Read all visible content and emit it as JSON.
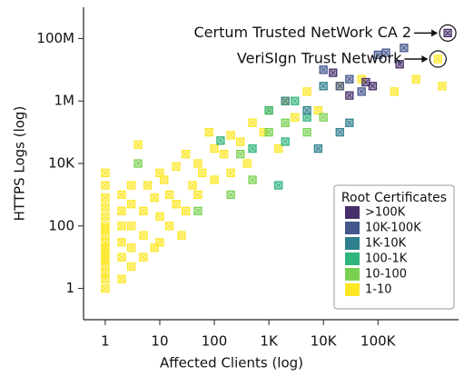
{
  "chart_data": {
    "type": "scatter",
    "xlabel": "Affected Clients (log)",
    "ylabel": "HTTPS Logs (log)",
    "xscale": "log",
    "yscale": "log",
    "xlim": [
      0.4,
      3000000
    ],
    "ylim": [
      0.1,
      1000000000
    ],
    "xticks": [
      1,
      10,
      100,
      {
        "value": 1000,
        "label": "1K"
      },
      {
        "value": 10000,
        "label": "10K"
      },
      {
        "value": 100000,
        "label": "100K"
      }
    ],
    "yticks": [
      1,
      100,
      {
        "value": 10000,
        "label": "10K"
      },
      {
        "value": 1000000,
        "label": "1M"
      },
      {
        "value": 100000000,
        "label": "100M"
      }
    ],
    "legend_title": "Root Certificates",
    "legend_position": "lower right",
    "series": [
      {
        "name": "1-10",
        "color": "#fde725",
        "x": [
          1,
          1,
          1,
          1,
          1,
          1,
          1,
          1,
          1,
          1,
          1,
          1,
          1,
          1,
          1,
          1,
          1,
          2,
          2,
          2,
          2,
          2,
          2,
          3,
          3,
          3,
          3,
          3,
          4,
          5,
          5,
          5,
          6,
          8,
          8,
          10,
          10,
          10,
          12,
          15,
          15,
          20,
          20,
          25,
          30,
          30,
          40,
          50,
          50,
          60,
          80,
          100,
          100,
          150,
          200,
          200,
          300,
          400,
          500,
          800,
          1000,
          1500,
          2000,
          3000,
          5000,
          8000,
          20000,
          50000,
          200000,
          500000,
          1500000,
          1260000
        ],
        "values": [
          1,
          2,
          3,
          5,
          8,
          10,
          15,
          20,
          30,
          50,
          80,
          100,
          200,
          400,
          800,
          2000,
          5000,
          2,
          10,
          30,
          100,
          300,
          1000,
          5,
          20,
          100,
          500,
          2000,
          40000,
          10,
          50,
          300,
          2000,
          20,
          800,
          30,
          200,
          5000,
          3000,
          100,
          1000,
          500,
          8000,
          50,
          300,
          20000,
          2000,
          1000,
          10000,
          5000,
          100000,
          3000,
          30000,
          20000,
          5000,
          80000,
          50000,
          10000,
          200000,
          100000,
          500000,
          30000,
          1000000,
          300000,
          2000000,
          500000,
          3000000,
          5000000,
          2000000,
          5000000,
          3000000,
          22000000
        ]
      },
      {
        "name": "10-100",
        "color": "#7ad151",
        "x": [
          4,
          50,
          200,
          300,
          500,
          1000,
          2000,
          5000,
          10000
        ],
        "values": [
          10000,
          300,
          1000,
          20000,
          3000,
          100000,
          200000,
          100000,
          300000
        ]
      },
      {
        "name": "100-1K",
        "color": "#2fb47c",
        "x": [
          130,
          500,
          1000,
          3000,
          5000,
          1500,
          2000
        ],
        "values": [
          54000,
          30000,
          500000,
          1000000,
          300000,
          2000,
          50000
        ]
      },
      {
        "name": "1K-10K",
        "color": "#2f7f8e",
        "x": [
          2000,
          5000,
          10000,
          20000,
          30000,
          8000
        ],
        "values": [
          1000000,
          500000,
          3000000,
          100000,
          200000,
          30000
        ]
      },
      {
        "name": "10K-100K",
        "color": "#45588d",
        "x": [
          10000,
          30000,
          20000,
          50000,
          100000,
          140000,
          300000
        ],
        "values": [
          10000000,
          5000000,
          3000000,
          2000000,
          30000000,
          35000000,
          50000000
        ]
      },
      {
        "name": ">100K",
        "color": "#472f6b",
        "x": [
          15000,
          30000,
          60000,
          80000,
          250000,
          1900000
        ],
        "values": [
          8000000,
          1500000,
          4000000,
          3000000,
          15000000,
          150000000
        ]
      }
    ],
    "annotations": [
      {
        "text": "Certum Trusted NetWork CA 2",
        "x": 1900000,
        "y": 150000000
      },
      {
        "text": "VeriSIgn Trust Network",
        "x": 1260000,
        "y": 22000000
      }
    ]
  }
}
